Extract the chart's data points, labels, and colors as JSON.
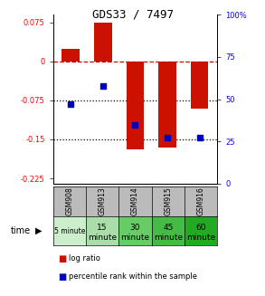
{
  "title": "GDS33 / 7497",
  "categories": [
    "GSM908",
    "GSM913",
    "GSM914",
    "GSM915",
    "GSM916"
  ],
  "time_labels_top": [
    "5 minute",
    "15",
    "30",
    "45",
    "60"
  ],
  "time_labels_bot": [
    "",
    "minute",
    "minute",
    "minute",
    "minute"
  ],
  "time_colors": [
    "#cceecc",
    "#aaddaa",
    "#66cc66",
    "#44bb44",
    "#22aa22"
  ],
  "log_ratios": [
    0.025,
    0.075,
    -0.17,
    -0.165,
    -0.09
  ],
  "percentile_ranks": [
    47,
    58,
    35,
    27,
    27
  ],
  "ylim_left": [
    -0.235,
    0.09
  ],
  "ylim_right": [
    0,
    100
  ],
  "yticks_left": [
    0.075,
    0,
    -0.075,
    -0.15,
    -0.225
  ],
  "yticks_right": [
    100,
    75,
    50,
    25,
    0
  ],
  "bar_color": "#cc1100",
  "dot_color": "#0000bb",
  "zero_line_color": "#cc0000",
  "dotted_line_color": "#000000",
  "bar_width": 0.55,
  "table_header_color": "#bbbbbb",
  "legend_bar_color": "#cc1100",
  "legend_dot_color": "#0000bb"
}
